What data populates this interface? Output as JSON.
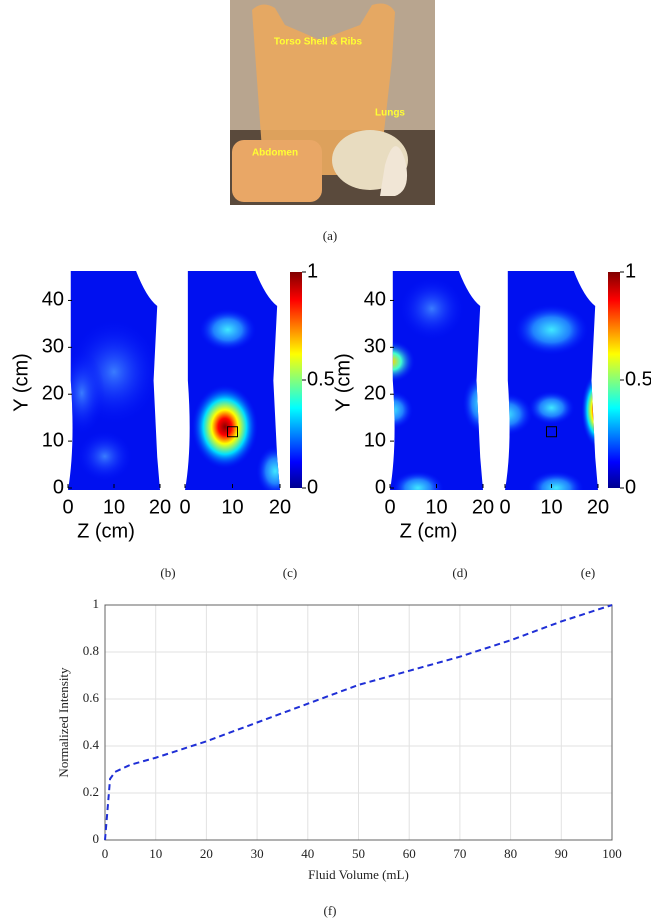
{
  "photo": {
    "labels": [
      "Torso Shell & Ribs",
      "Lungs",
      "Abdomen"
    ],
    "caption": "(a)"
  },
  "chart_data": [
    {
      "type": "heatmap",
      "caption": "(b)",
      "xlabel": "Z (cm)",
      "ylabel": "Y (cm)",
      "xlim": [
        0,
        20
      ],
      "ylim": [
        0,
        45
      ],
      "xticks": [
        0,
        10,
        20
      ],
      "yticks": [
        0,
        10,
        20,
        30,
        40
      ]
    },
    {
      "type": "heatmap",
      "caption": "(c)",
      "xlim": [
        0,
        20
      ],
      "ylim": [
        0,
        45
      ],
      "xticks": [
        0,
        10,
        20
      ],
      "clim": [
        0,
        1
      ],
      "cticks": [
        0,
        0.5,
        1
      ]
    },
    {
      "type": "heatmap",
      "caption": "(d)",
      "xlabel": "Z (cm)",
      "ylabel": "Y (cm)",
      "xlim": [
        0,
        20
      ],
      "ylim": [
        0,
        45
      ],
      "xticks": [
        0,
        10,
        20
      ],
      "yticks": [
        0,
        10,
        20,
        30,
        40
      ]
    },
    {
      "type": "heatmap",
      "caption": "(e)",
      "xlim": [
        0,
        20
      ],
      "ylim": [
        0,
        45
      ],
      "xticks": [
        0,
        10,
        20
      ],
      "clim": [
        0,
        1
      ],
      "cticks": [
        0,
        0.5,
        1
      ]
    },
    {
      "type": "line",
      "caption": "(f)",
      "xlabel": "Fluid Volume (mL)",
      "ylabel": "Normalized Intensity",
      "x": [
        0,
        1,
        2,
        5,
        10,
        20,
        30,
        40,
        50,
        60,
        70,
        80,
        90,
        100
      ],
      "series": [
        {
          "color": "#1f2fd6",
          "dash": true,
          "values": [
            0,
            0.26,
            0.29,
            0.32,
            0.35,
            0.42,
            0.5,
            0.58,
            0.66,
            0.72,
            0.78,
            0.85,
            0.93,
            1.0
          ]
        }
      ],
      "xlim": [
        0,
        100
      ],
      "ylim": [
        0,
        1
      ],
      "xticks": [
        0,
        10,
        20,
        30,
        40,
        50,
        60,
        70,
        80,
        90,
        100
      ],
      "yticks": [
        0,
        0.2,
        0.4,
        0.6,
        0.8,
        1
      ],
      "grid": true
    }
  ]
}
